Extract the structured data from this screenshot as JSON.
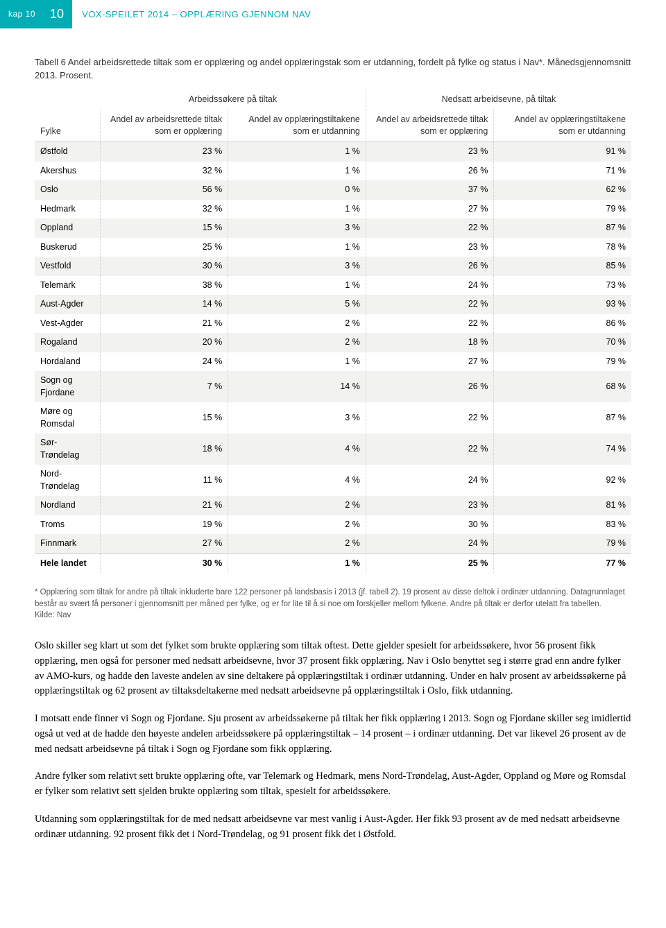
{
  "header": {
    "kap_label": "kap 10",
    "page_num": "10",
    "title": "VOX-SPEILET 2014 – OPPLÆRING GJENNOM NAV",
    "accent_color": "#00adb5"
  },
  "table": {
    "caption": "Tabell 6 Andel arbeidsrettede tiltak som er opplæring og andel opplæringstak som er utdanning, fordelt på fylke og status i Nav*. Månedsgjennomsnitt 2013. Prosent.",
    "group_headers": [
      "Arbeidssøkere på tiltak",
      "Nedsatt arbeidsevne, på tiltak"
    ],
    "col_headers": [
      "Fylke",
      "Andel av arbeidsrettede tiltak som er opplæring",
      "Andel av opplæringstiltakene som er utdanning",
      "Andel av arbeidsrettede tiltak som er opplæring",
      "Andel av opplæringstiltakene som er utdanning"
    ],
    "rows": [
      [
        "Østfold",
        "23 %",
        "1 %",
        "23 %",
        "91 %"
      ],
      [
        "Akershus",
        "32 %",
        "1 %",
        "26 %",
        "71 %"
      ],
      [
        "Oslo",
        "56 %",
        "0 %",
        "37 %",
        "62 %"
      ],
      [
        "Hedmark",
        "32 %",
        "1 %",
        "27 %",
        "79 %"
      ],
      [
        "Oppland",
        "15 %",
        "3 %",
        "22 %",
        "87 %"
      ],
      [
        "Buskerud",
        "25 %",
        "1 %",
        "23 %",
        "78 %"
      ],
      [
        "Vestfold",
        "30 %",
        "3 %",
        "26 %",
        "85 %"
      ],
      [
        "Telemark",
        "38 %",
        "1 %",
        "24 %",
        "73 %"
      ],
      [
        "Aust-Agder",
        "14 %",
        "5 %",
        "22 %",
        "93 %"
      ],
      [
        "Vest-Agder",
        "21 %",
        "2 %",
        "22 %",
        "86 %"
      ],
      [
        "Rogaland",
        "20 %",
        "2 %",
        "18 %",
        "70 %"
      ],
      [
        "Hordaland",
        "24 %",
        "1 %",
        "27 %",
        "79 %"
      ],
      [
        "Sogn og Fjordane",
        "7 %",
        "14 %",
        "26 %",
        "68 %"
      ],
      [
        "Møre og Romsdal",
        "15 %",
        "3 %",
        "22 %",
        "87 %"
      ],
      [
        "Sør-Trøndelag",
        "18 %",
        "4 %",
        "22 %",
        "74 %"
      ],
      [
        "Nord-Trøndelag",
        "11 %",
        "4 %",
        "24 %",
        "92 %"
      ],
      [
        "Nordland",
        "21 %",
        "2 %",
        "23 %",
        "81 %"
      ],
      [
        "Troms",
        "19 %",
        "2 %",
        "30 %",
        "83 %"
      ],
      [
        "Finnmark",
        "27 %",
        "2 %",
        "24 %",
        "79 %"
      ],
      [
        "Hele landet",
        "30 %",
        "1 %",
        "25 %",
        "77 %"
      ]
    ],
    "row_odd_bg": "#f2f2f0",
    "row_even_bg": "#ffffff",
    "border_color": "#cfcfcf"
  },
  "footnote": {
    "text": "* Opplæring som tiltak for andre på tiltak inkluderte bare 122 personer på landsbasis i 2013 (jf. tabell 2). 19 prosent av disse deltok i ordinær utdanning. Datagrunnlaget består av svært få personer i gjennomsnitt per måned per fylke, og er for lite til å si noe om forskjeller mellom fylkene. Andre på tiltak er derfor utelatt fra tabellen.",
    "kilde": "Kilde: Nav"
  },
  "paragraphs": [
    "Oslo skiller seg klart ut som det fylket som brukte opplæring som tiltak oftest. Dette gjelder spesielt for arbeidssøkere, hvor 56 prosent fikk opplæring, men også for personer med nedsatt arbeidsevne, hvor 37 prosent fikk opplæring. Nav i Oslo benyttet seg i større grad enn andre fylker av AMO-kurs, og hadde den laveste andelen av sine deltakere på opplæringstiltak i ordinær utdanning. Under en halv prosent av arbeidssøkerne på opplæringstiltak og 62 prosent av tiltaksdeltakerne med nedsatt arbeidsevne på opplæringstiltak i Oslo, fikk utdanning.",
    "I motsatt ende finner vi Sogn og Fjordane. Sju prosent av arbeidssøkerne på tiltak her fikk opplæring i 2013. Sogn og Fjordane skiller seg imidlertid også ut ved at de hadde den høyeste andelen arbeidssøkere på opplæringstiltak – 14 prosent – i ordinær utdanning. Det var likevel 26 prosent av de med nedsatt arbeidsevne på tiltak i Sogn og Fjordane som fikk opplæring.",
    "Andre fylker som relativt sett brukte opplæring ofte, var Telemark og Hedmark, mens Nord-Trøndelag, Aust-Agder, Oppland og Møre og Romsdal er fylker som relativt sett sjelden brukte opplæring som tiltak, spesielt for arbeidssøkere.",
    "Utdanning som opplæringstiltak for de med nedsatt arbeidsevne var mest vanlig i Aust-Agder. Her fikk 93 prosent av de med nedsatt arbeidsevne ordinær utdanning. 92 prosent fikk det i Nord-Trøndelag, og 91 prosent fikk det i Østfold."
  ]
}
